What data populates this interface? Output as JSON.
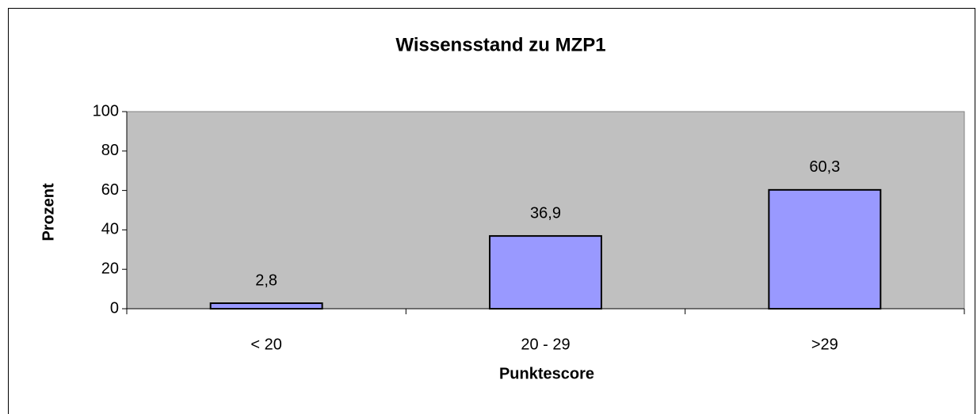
{
  "chart_data": {
    "type": "bar",
    "title": "Wissensstand zu MZP1",
    "x_label": "Punktescore",
    "y_label": "Prozent",
    "categories": [
      "< 20",
      "20 - 29",
      ">29"
    ],
    "values": [
      2.8,
      36.9,
      60.3
    ],
    "value_labels": [
      "2,8",
      "36,9",
      "60,3"
    ],
    "color": "#9999ff",
    "plot_background": "#c0c0c0",
    "ylim": [
      0,
      100
    ],
    "yticks": [
      0,
      20,
      40,
      60,
      80,
      100
    ],
    "grid": false
  }
}
